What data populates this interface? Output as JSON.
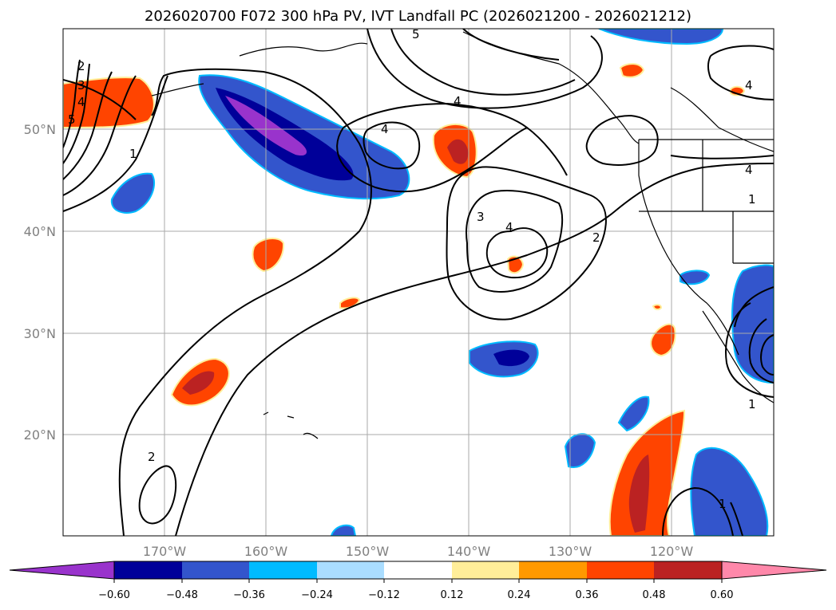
{
  "title": "2026020700 F072 300 hPa PV, IVT Landfall PC (2026021200 - 2026021212)",
  "map": {
    "lat_labels": [
      "50°N",
      "40°N",
      "30°N",
      "20°N"
    ],
    "lon_labels": [
      "170°W",
      "160°W",
      "150°W",
      "140°W",
      "130°W",
      "120°W"
    ],
    "contour_labels": [
      "2",
      "3",
      "4",
      "5",
      "1",
      "4",
      "4",
      "5",
      "3",
      "4",
      "2",
      "4",
      "4",
      "1",
      "2",
      "1",
      "1"
    ]
  },
  "colorbar": {
    "tick_labels": [
      "−0.60",
      "−0.48",
      "−0.36",
      "−0.24",
      "−0.12",
      "0.12",
      "0.24",
      "0.36",
      "0.48",
      "0.60"
    ],
    "colors": [
      "#9933cc",
      "#000099",
      "#3355cc",
      "#00bbff",
      "#aaddff",
      "#ffffff",
      "#ffee99",
      "#ff9900",
      "#ff4400",
      "#bb2222",
      "#ff88aa"
    ]
  }
}
